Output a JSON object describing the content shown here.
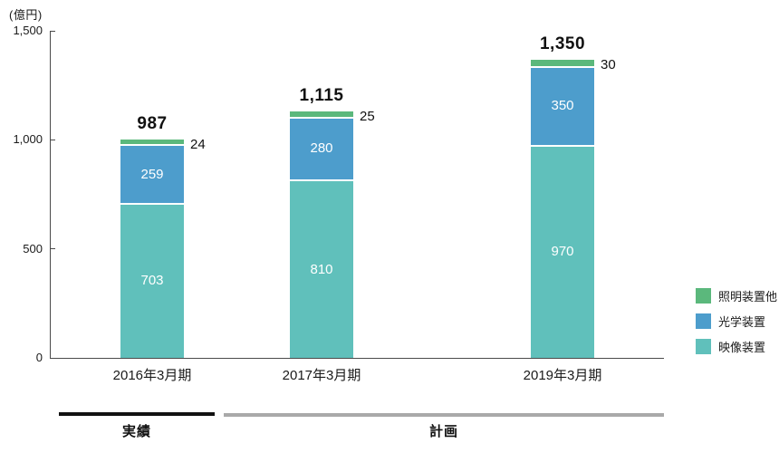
{
  "chart_data": {
    "type": "bar",
    "stacked": true,
    "title": "",
    "unit_label": "(億円)",
    "categories": [
      "2016年3月期",
      "2017年3月期",
      "2019年3月期"
    ],
    "series": [
      {
        "name": "映像装置",
        "color": "#60c0bb",
        "values": [
          703,
          810,
          970
        ]
      },
      {
        "name": "光学装置",
        "color": "#4d9dcc",
        "values": [
          259,
          280,
          350
        ]
      },
      {
        "name": "照明装置他",
        "color": "#5bb87c",
        "values": [
          24,
          25,
          30
        ]
      }
    ],
    "totals": [
      {
        "value": 987,
        "label": "987"
      },
      {
        "value": 1115,
        "label": "1,115"
      },
      {
        "value": 1350,
        "label": "1,350"
      }
    ],
    "top_segment_labels": [
      "24",
      "25",
      "30"
    ],
    "ylim": [
      0,
      1500
    ],
    "yticks": [
      {
        "value": 0,
        "label": "0"
      },
      {
        "value": 500,
        "label": "500"
      },
      {
        "value": 1000,
        "label": "1,000"
      },
      {
        "value": 1500,
        "label": "1,500"
      }
    ],
    "grid": false,
    "legend_position": "right"
  },
  "legend": {
    "items": [
      {
        "label": "照明装置他",
        "color": "#5bb87c"
      },
      {
        "label": "光学装置",
        "color": "#4d9dcc"
      },
      {
        "label": "映像装置",
        "color": "#60c0bb"
      }
    ]
  },
  "footer": {
    "actual_label": "実績",
    "plan_label": "計画",
    "actual_color": "#111111",
    "plan_color": "#a9a9a9"
  }
}
